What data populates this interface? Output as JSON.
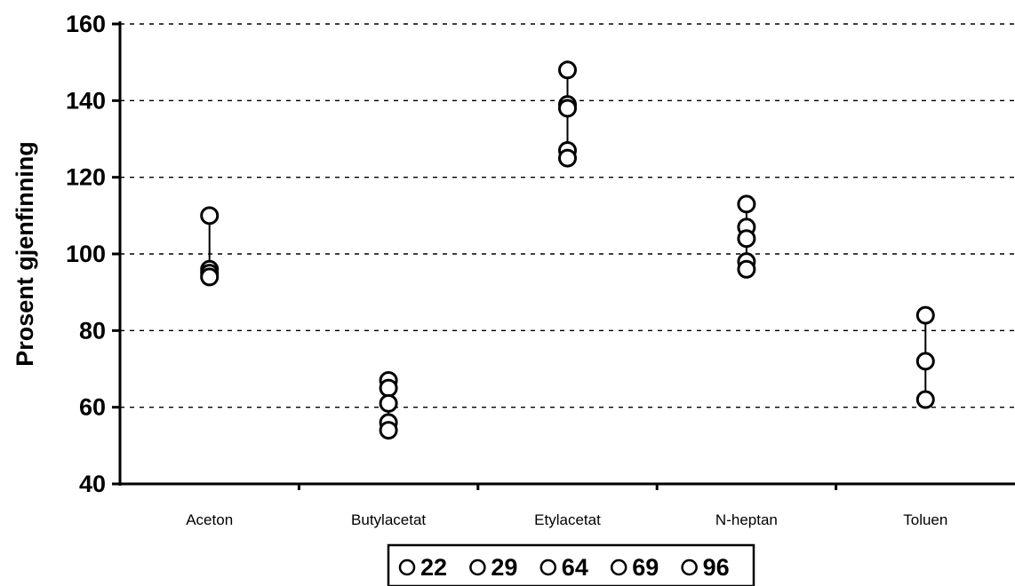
{
  "chart_data": {
    "type": "scatter",
    "title": "",
    "ylabel": "Prosent gjenfinning",
    "xlabel": "",
    "ylim": [
      40,
      160
    ],
    "yticks": [
      40,
      60,
      80,
      100,
      120,
      140,
      160
    ],
    "grid": true,
    "categories": [
      "Aceton",
      "Butylacetat",
      "Etylacetat",
      "N-heptan",
      "Toluen"
    ],
    "points": [
      [
        110,
        96,
        95,
        94
      ],
      [
        67,
        65,
        61,
        56,
        54
      ],
      [
        148,
        139,
        138,
        127,
        125
      ],
      [
        113,
        107,
        104,
        98,
        96
      ],
      [
        84,
        72,
        62
      ]
    ],
    "legend": {
      "placement": "bottom",
      "entries": [
        "22",
        "29",
        "64",
        "69",
        "96"
      ]
    }
  }
}
